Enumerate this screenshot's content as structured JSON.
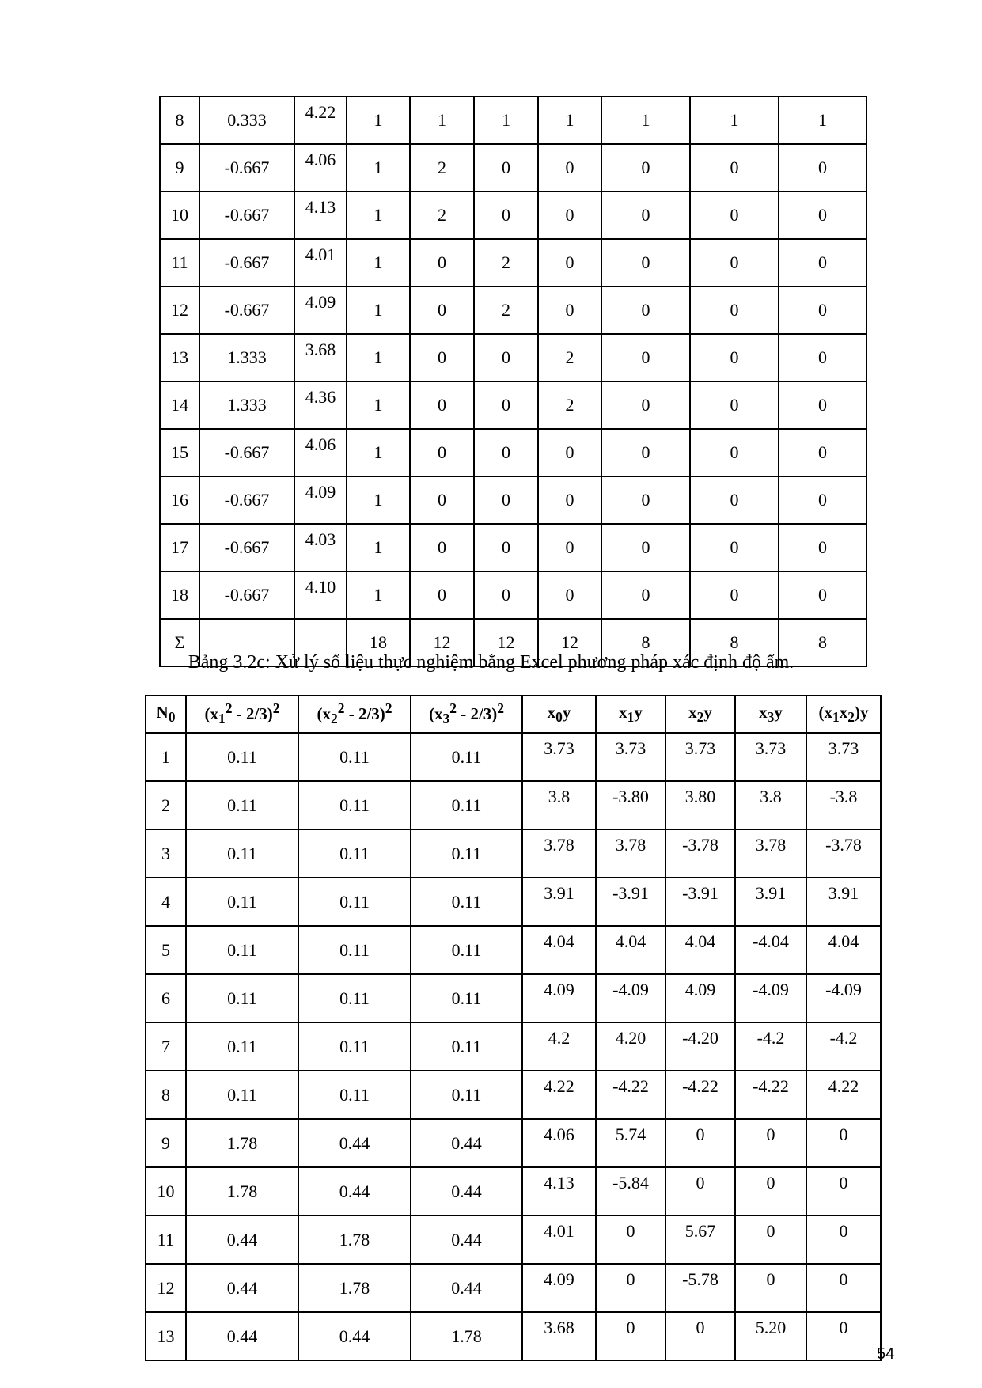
{
  "table1": {
    "rows": [
      [
        "8",
        "0.333",
        "4.22",
        "1",
        "1",
        "1",
        "1",
        "1",
        "1",
        "1"
      ],
      [
        "9",
        "-0.667",
        "4.06",
        "1",
        "2",
        "0",
        "0",
        "0",
        "0",
        "0"
      ],
      [
        "10",
        "-0.667",
        "4.13",
        "1",
        "2",
        "0",
        "0",
        "0",
        "0",
        "0"
      ],
      [
        "11",
        "-0.667",
        "4.01",
        "1",
        "0",
        "2",
        "0",
        "0",
        "0",
        "0"
      ],
      [
        "12",
        "-0.667",
        "4.09",
        "1",
        "0",
        "2",
        "0",
        "0",
        "0",
        "0"
      ],
      [
        "13",
        "1.333",
        "3.68",
        "1",
        "0",
        "0",
        "2",
        "0",
        "0",
        "0"
      ],
      [
        "14",
        "1.333",
        "4.36",
        "1",
        "0",
        "0",
        "2",
        "0",
        "0",
        "0"
      ],
      [
        "15",
        "-0.667",
        "4.06",
        "1",
        "0",
        "0",
        "0",
        "0",
        "0",
        "0"
      ],
      [
        "16",
        "-0.667",
        "4.09",
        "1",
        "0",
        "0",
        "0",
        "0",
        "0",
        "0"
      ],
      [
        "17",
        "-0.667",
        "4.03",
        "1",
        "0",
        "0",
        "0",
        "0",
        "0",
        "0"
      ],
      [
        "18",
        "-0.667",
        "4.10",
        "1",
        "0",
        "0",
        "0",
        "0",
        "0",
        "0"
      ],
      [
        "Σ",
        "",
        "",
        "18",
        "12",
        "12",
        "12",
        "8",
        "8",
        "8"
      ]
    ]
  },
  "caption": "Bảng 3.2c: Xử lý số liệu thực nghiệm bằng Excel phương pháp xác định độ ẩm.",
  "table2": {
    "headers": [
      "N<sub>0</sub>",
      "(x<sub>1</sub><sup>2</sup> - 2/3)<sup>2</sup>",
      "(x<sub>2</sub><sup>2</sup> - 2/3)<sup>2</sup>",
      "(x<sub>3</sub><sup>2</sup> - 2/3)<sup>2</sup>",
      "x<sub>0</sub>y",
      "x<sub>1</sub>y",
      "x<sub>2</sub>y",
      "x<sub>3</sub>y",
      "(x<sub>1</sub>x<sub>2</sub>)y"
    ],
    "rows": [
      [
        "1",
        "0.11",
        "0.11",
        "0.11",
        "3.73",
        "3.73",
        "3.73",
        "3.73",
        "3.73"
      ],
      [
        "2",
        "0.11",
        "0.11",
        "0.11",
        "3.8",
        "-3.80",
        "3.80",
        "3.8",
        "-3.8"
      ],
      [
        "3",
        "0.11",
        "0.11",
        "0.11",
        "3.78",
        "3.78",
        "-3.78",
        "3.78",
        "-3.78"
      ],
      [
        "4",
        "0.11",
        "0.11",
        "0.11",
        "3.91",
        "-3.91",
        "-3.91",
        "3.91",
        "3.91"
      ],
      [
        "5",
        "0.11",
        "0.11",
        "0.11",
        "4.04",
        "4.04",
        "4.04",
        "-4.04",
        "4.04"
      ],
      [
        "6",
        "0.11",
        "0.11",
        "0.11",
        "4.09",
        "-4.09",
        "4.09",
        "-4.09",
        "-4.09"
      ],
      [
        "7",
        "0.11",
        "0.11",
        "0.11",
        "4.2",
        "4.20",
        "-4.20",
        "-4.2",
        "-4.2"
      ],
      [
        "8",
        "0.11",
        "0.11",
        "0.11",
        "4.22",
        "-4.22",
        "-4.22",
        "-4.22",
        "4.22"
      ],
      [
        "9",
        "1.78",
        "0.44",
        "0.44",
        "4.06",
        "5.74",
        "0",
        "0",
        "0"
      ],
      [
        "10",
        "1.78",
        "0.44",
        "0.44",
        "4.13",
        "-5.84",
        "0",
        "0",
        "0"
      ],
      [
        "11",
        "0.44",
        "1.78",
        "0.44",
        "4.01",
        "0",
        "5.67",
        "0",
        "0"
      ],
      [
        "12",
        "0.44",
        "1.78",
        "0.44",
        "4.09",
        "0",
        "-5.78",
        "0",
        "0"
      ],
      [
        "13",
        "0.44",
        "0.44",
        "1.78",
        "3.68",
        "0",
        "0",
        "5.20",
        "0"
      ]
    ]
  },
  "page_number": "54"
}
